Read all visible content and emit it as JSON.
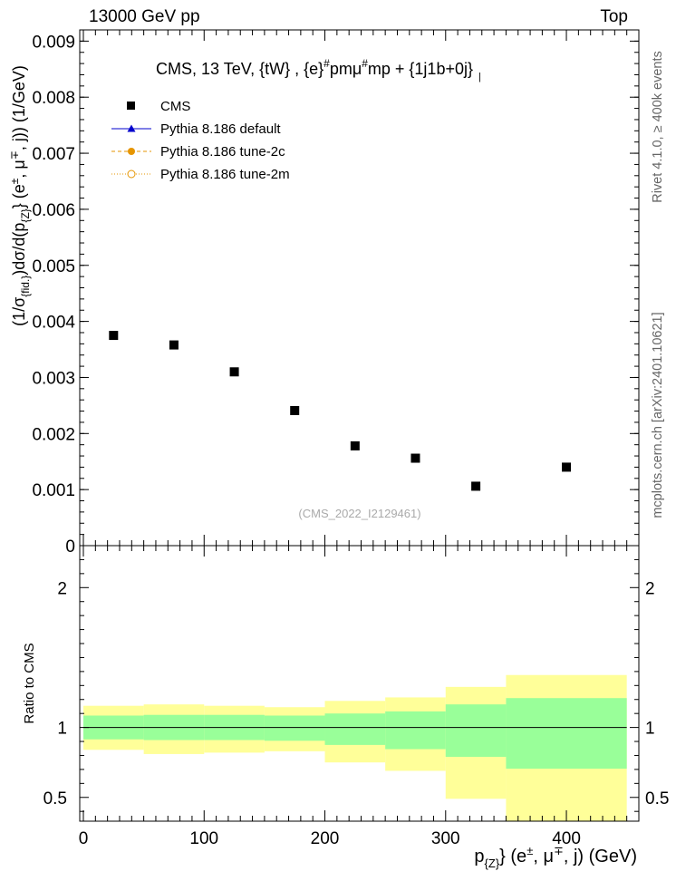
{
  "header": {
    "energy_label": "13000 GeV pp",
    "process_label": "Top"
  },
  "side_labels": {
    "rivet": "Rivet 4.1.0, ≥ 400k events",
    "mcplots": "mcplots.cern.ch [arXiv:2401.10621]"
  },
  "chart_data": [
    {
      "type": "scatter",
      "panel": "main",
      "title": "CMS, 13 TeV, {tW} , {e}#pmμ#mp + {1j1b+0j}",
      "title_parts": {
        "main": "CMS, 13 TeV, {tW} , {e}",
        "sup1": "#",
        "mid": "pmμ",
        "sup2": "#",
        "tail": "mp + {1j1b+0j}",
        "sub": "|"
      },
      "ylabel": "(1/σ{fid.})dσ/d(p{Z}) (e±, μ∓, j)) (1/GeV)",
      "xlim": [
        -3,
        460
      ],
      "ylim": [
        0,
        0.0092
      ],
      "yticks": [
        0,
        0.001,
        0.002,
        0.003,
        0.004,
        0.005,
        0.006,
        0.007,
        0.008,
        0.009
      ],
      "ytick_labels": [
        "0",
        "0.001",
        "0.002",
        "0.003",
        "0.004",
        "0.005",
        "0.006",
        "0.007",
        "0.008",
        "0.009"
      ],
      "watermark": "(CMS_2022_I2129461)",
      "legend": {
        "position": "top-left",
        "entries": [
          {
            "label": "CMS",
            "marker": "square",
            "color": "#000000"
          },
          {
            "label": "Pythia 8.186 default",
            "marker": "triangle",
            "color": "#0000cc",
            "line": "solid"
          },
          {
            "label": "Pythia 8.186 tune-2c",
            "marker": "circle-filled",
            "color": "#e69500",
            "line": "dashed"
          },
          {
            "label": "Pythia 8.186 tune-2m",
            "marker": "circle-open",
            "color": "#e69500",
            "line": "dotted"
          }
        ]
      },
      "series": [
        {
          "name": "CMS",
          "x": [
            25,
            75,
            125,
            175,
            225,
            275,
            325,
            400
          ],
          "y": [
            0.00375,
            0.00358,
            0.0031,
            0.00241,
            0.00178,
            0.00156,
            0.00106,
            0.0014
          ]
        }
      ]
    },
    {
      "type": "area",
      "panel": "ratio",
      "ylabel": "Ratio to CMS",
      "xlabel": "p{Z} (e±, μ∓, j) (GeV)",
      "xlim": [
        -3,
        460
      ],
      "ylim": [
        0.33,
        2.3
      ],
      "xticks": [
        0,
        100,
        200,
        300,
        400
      ],
      "xtick_labels": [
        "0",
        "100",
        "200",
        "300",
        "400"
      ],
      "yticks": [
        0.5,
        1,
        2
      ],
      "ytick_labels": [
        "0.5",
        "1",
        "2"
      ],
      "reference_line": 1,
      "bins": [
        [
          0,
          50
        ],
        [
          50,
          100
        ],
        [
          100,
          150
        ],
        [
          150,
          200
        ],
        [
          200,
          250
        ],
        [
          250,
          300
        ],
        [
          300,
          350
        ],
        [
          350,
          450
        ]
      ],
      "band_stat": {
        "name": "stat",
        "color": "#99ff99",
        "low": [
          0.915,
          0.91,
          0.91,
          0.905,
          0.875,
          0.845,
          0.79,
          0.705
        ],
        "high": [
          1.085,
          1.09,
          1.09,
          1.085,
          1.1,
          1.115,
          1.165,
          1.21
        ]
      },
      "band_total": {
        "name": "stat+syst",
        "color": "#ffff99",
        "low": [
          0.84,
          0.81,
          0.82,
          0.83,
          0.75,
          0.69,
          0.49,
          0.33
        ],
        "high": [
          1.155,
          1.165,
          1.155,
          1.145,
          1.19,
          1.215,
          1.29,
          1.375
        ]
      }
    }
  ]
}
